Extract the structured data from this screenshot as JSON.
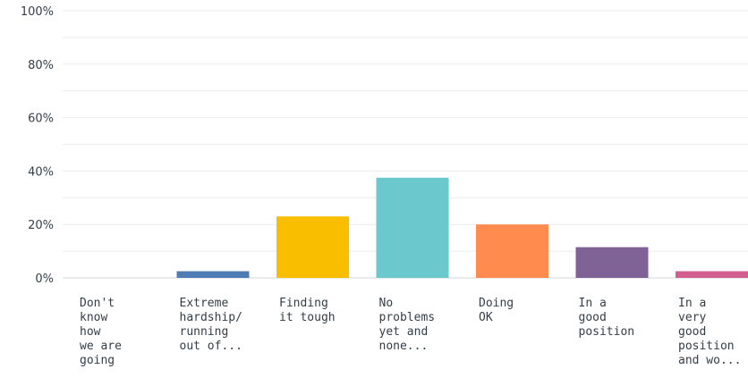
{
  "chart_data": {
    "type": "bar",
    "categories": [
      "Don't\nknow\nhow\nwe are\ngoing",
      "Extreme\nhardship/\nrunning\nout of...",
      "Finding\nit tough",
      "No\nproblems\nyet and\nnone...",
      "Doing\nOK",
      "In a\ngood\nposition",
      "In a\nvery\ngood\nposition\nand wo..."
    ],
    "values": [
      0,
      2.5,
      23,
      37.5,
      20,
      11.5,
      2.5
    ],
    "colors": [
      "#6b8ec6",
      "#507cb6",
      "#f9be00",
      "#6bc8cd",
      "#ff8b4f",
      "#7f6296",
      "#d25f90"
    ],
    "ylim": [
      0,
      100
    ],
    "yticks": [
      "0%",
      "20%",
      "40%",
      "60%",
      "80%",
      "100%"
    ],
    "grid": true,
    "legend": "none"
  }
}
